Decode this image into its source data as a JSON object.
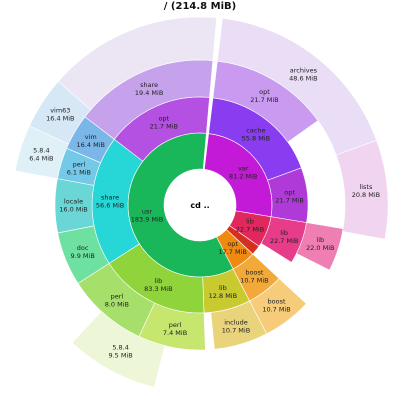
{
  "window": {
    "title": "/ (214.8 MiB)"
  },
  "center": {
    "label": "cd .."
  },
  "rings": [
    {
      "ring": 0,
      "segments": [
        {
          "name": "var",
          "size": "81.2 MiB",
          "start": 0.0,
          "end": 0.257,
          "color": "#c21ad6"
        },
        {
          "name": "lib",
          "size": "22.7 MiB",
          "start": 0.257,
          "end": 0.328,
          "color": "#e0285e"
        },
        {
          "name": "lib",
          "size": "7.0 MiB",
          "start": 0.328,
          "end": 0.35,
          "color": "#d62f1f"
        },
        {
          "name": "opt",
          "size": "17.7 MiB",
          "start": 0.35,
          "end": 0.405,
          "color": "#ee8a12"
        },
        {
          "name": "usr",
          "size": "183.9 MiB",
          "start": 0.405,
          "end": 0.995,
          "color": "#19b65a"
        }
      ]
    },
    {
      "ring": 1,
      "segments": [
        {
          "name": "cache",
          "size": "55.8 MiB",
          "start": 0.0,
          "end": 0.175,
          "color": "#8a3df0"
        },
        {
          "name": "opt",
          "size": "21.7 MiB",
          "start": 0.175,
          "end": 0.257,
          "color": "#b03ad8"
        },
        {
          "name": "lib",
          "size": "22.7 MiB",
          "start": 0.257,
          "end": 0.32,
          "color": "#e63c8a"
        },
        {
          "name": "boost",
          "size": "10.7 MiB",
          "start": 0.35,
          "end": 0.405,
          "color": "#f2a93a"
        },
        {
          "name": "lib",
          "size": "12.8 MiB",
          "start": 0.405,
          "end": 0.475,
          "color": "#c9ca30"
        },
        {
          "name": "lib",
          "size": "83.3 MiB",
          "start": 0.475,
          "end": 0.64,
          "color": "#8fd43a"
        },
        {
          "name": "share",
          "size": "56.6 MiB",
          "start": 0.64,
          "end": 0.835,
          "color": "#27d6d6"
        },
        {
          "name": "opt",
          "size": "21.7 MiB",
          "start": 0.835,
          "end": 0.995,
          "color": "#b450e2"
        }
      ]
    },
    {
      "ring": 2,
      "segments": [
        {
          "name": "opt",
          "size": "21.7 MiB",
          "start": 0.0,
          "end": 0.132,
          "color": "#c99af0"
        },
        {
          "name": "lib",
          "size": "22.0 MiB",
          "start": 0.257,
          "end": 0.305,
          "color": "#ef7fb2"
        },
        {
          "name": "boost",
          "size": "10.7 MiB",
          "start": 0.35,
          "end": 0.405,
          "color": "#f6cc7a"
        },
        {
          "name": "include",
          "size": "10.7 MiB",
          "start": 0.405,
          "end": 0.465,
          "color": "#e9d47c"
        },
        {
          "name": "perl",
          "size": "7.4 MiB",
          "start": 0.475,
          "end": 0.55,
          "color": "#c6e66e"
        },
        {
          "name": "perl",
          "size": "8.0 MiB",
          "start": 0.55,
          "end": 0.64,
          "color": "#a6e06a"
        },
        {
          "name": "doc",
          "size": "9.9 MiB",
          "start": 0.64,
          "end": 0.7,
          "color": "#6ee0a0"
        },
        {
          "name": "locale",
          "size": "16.0 MiB",
          "start": 0.7,
          "end": 0.76,
          "color": "#6ad6d6"
        },
        {
          "name": "perl",
          "size": "6.1 MiB",
          "start": 0.76,
          "end": 0.795,
          "color": "#75c9e8"
        },
        {
          "name": "vim",
          "size": "16.4 MiB",
          "start": 0.795,
          "end": 0.835,
          "color": "#7ab6e8"
        },
        {
          "name": "share",
          "size": "19.4 MiB",
          "start": 0.835,
          "end": 0.995,
          "color": "#c6a2ec"
        }
      ]
    },
    {
      "ring": 3,
      "segments": [
        {
          "name": "archives",
          "size": "48.6 MiB",
          "start": 0.0,
          "end": 0.175,
          "color": "#e9def6"
        },
        {
          "name": "lists",
          "size": "20.8 MiB",
          "start": 0.175,
          "end": 0.26,
          "color": "#f0d4f0"
        },
        {
          "name": "5.8.4",
          "size": "9.5 MiB",
          "start": 0.52,
          "end": 0.6,
          "color": "#eef6d8"
        },
        {
          "name": "5.8.4",
          "size": "6.4 MiB",
          "start": 0.76,
          "end": 0.8,
          "color": "#dff0f6"
        },
        {
          "name": "vim63",
          "size": "16.4 MiB",
          "start": 0.8,
          "end": 0.845,
          "color": "#d6e8f6"
        },
        {
          "name": "",
          "size": "",
          "start": 0.845,
          "end": 0.995,
          "color": "#ece6f4"
        }
      ]
    }
  ],
  "colors": {
    "accent": "#c21ad6",
    "background": "#ffffff"
  }
}
